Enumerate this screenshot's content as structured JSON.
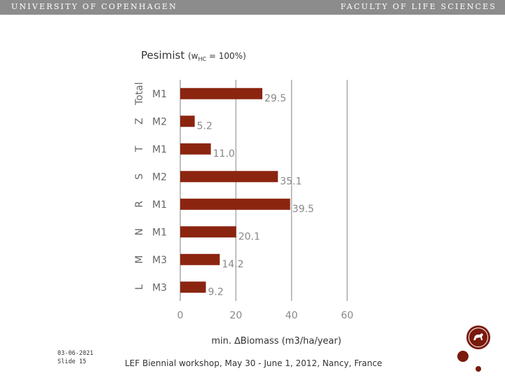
{
  "header": {
    "left": "UNIVERSITY OF COPENHAGEN",
    "right": "FACULTY OF LIFE SCIENCES"
  },
  "footer": {
    "date": "03-06-2021",
    "slide": "Slide 15",
    "event": "LEF Biennial workshop, May 30 - June 1, 2012, Nancy, France"
  },
  "colors": {
    "bar": "#8b2510",
    "grid": "#aaaaaa",
    "accent": "#7a1a0d"
  },
  "chart_data": {
    "type": "bar",
    "orientation": "horizontal",
    "title": "Pesimist",
    "title_formula": {
      "prefix": "(w",
      "subscript": "HC",
      "suffix": " = 100%)"
    },
    "xlabel": "min. ∆Biomass (m3/ha/year)",
    "xlim": [
      0,
      60
    ],
    "xticks": [
      0,
      20,
      40,
      60
    ],
    "grid": true,
    "groups": [
      "Total",
      "Z",
      "T",
      "S",
      "R",
      "N",
      "M",
      "L"
    ],
    "categories": [
      "M1",
      "M2",
      "M1",
      "M2",
      "M1",
      "M1",
      "M3",
      "M3"
    ],
    "values": [
      29.5,
      5.2,
      11.0,
      35.1,
      39.5,
      20.1,
      14.2,
      9.2
    ],
    "value_labels": [
      "29.5",
      "5.2",
      "11.0",
      "35.1",
      "39.5",
      "20.1",
      "14.2",
      "9.2"
    ]
  }
}
